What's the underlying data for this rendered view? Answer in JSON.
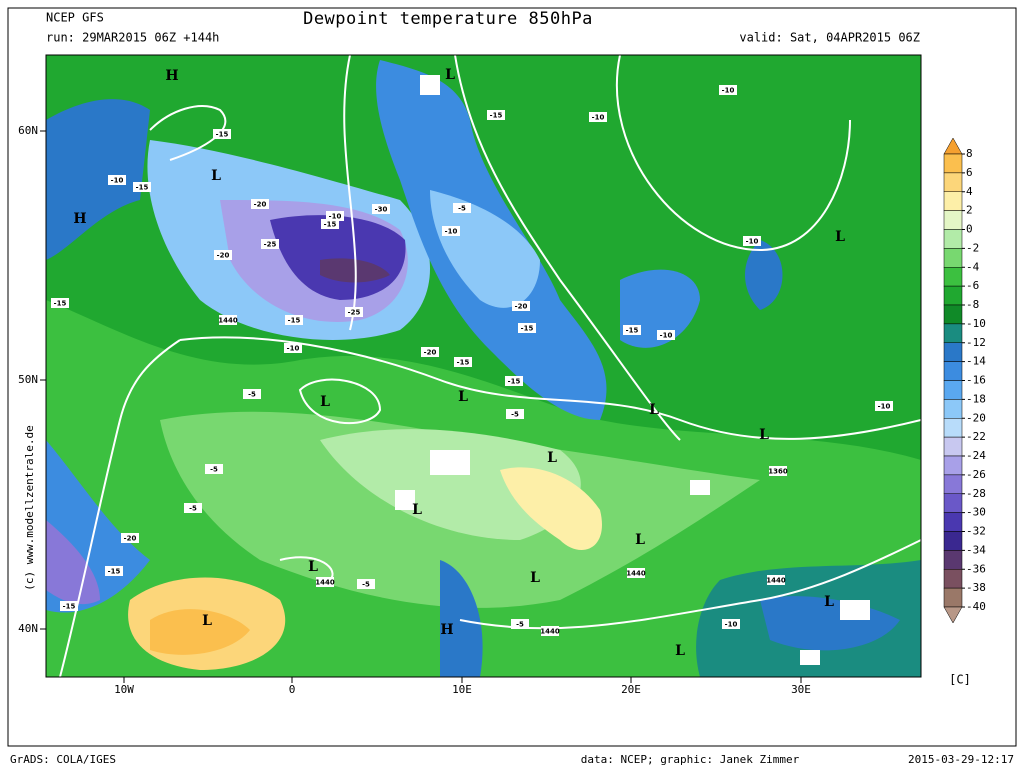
{
  "header": {
    "model": "NCEP GFS",
    "run": "run: 29MAR2015 06Z +144h",
    "title": "Dewpoint temperature 850hPa",
    "valid": "valid: Sat, 04APR2015 06Z"
  },
  "credit": "(c) www.modellzentrale.de",
  "map": {
    "lat_labels": [
      "60N",
      "50N",
      "40N"
    ],
    "lon_labels": [
      "10W",
      "0",
      "10E",
      "20E",
      "30E"
    ],
    "systems": [
      "H",
      "L",
      "H",
      "L",
      "L",
      "L",
      "L",
      "L",
      "L",
      "L",
      "L",
      "L",
      "L",
      "L",
      "L",
      "H",
      "L",
      "L"
    ],
    "contour_labels": [
      "-10",
      "-15",
      "-10",
      "-15",
      "-10",
      "-15",
      "-20",
      "-10",
      "-15",
      "-30",
      "-5",
      "-10",
      "-25",
      "-20",
      "-10",
      "-15",
      "1440",
      "-15",
      "-25",
      "-20",
      "-15",
      "-15",
      "-10",
      "-10",
      "-20",
      "-15",
      "-15",
      "-5",
      "-5",
      "-10",
      "-5",
      "1360",
      "-5",
      "-20",
      "1440",
      "-5",
      "1440",
      "1440",
      "-15",
      "-15",
      "1440",
      "-10",
      "-5"
    ]
  },
  "colorbar": {
    "levels": [
      8,
      6,
      4,
      2,
      0,
      -2,
      -4,
      -6,
      -8,
      -10,
      -12,
      -14,
      -16,
      -18,
      -20,
      -22,
      -24,
      -26,
      -28,
      -30,
      -32,
      -34,
      -36,
      -38,
      -40
    ],
    "colors": [
      "#f5a030",
      "#fbbf4e",
      "#fcd67a",
      "#fdefa8",
      "#e4f6c6",
      "#b2eba8",
      "#78d870",
      "#3cc040",
      "#20a830",
      "#108a28",
      "#1a8c80",
      "#2a78c8",
      "#3c8ce0",
      "#5aa8f0",
      "#8cc8f8",
      "#b8dcfa",
      "#c8c8f0",
      "#a8a0e8",
      "#8878d8",
      "#6a58c8",
      "#4a38b0",
      "#3a2890",
      "#5a3870",
      "#7a5060",
      "#9a7868",
      "#b89888"
    ],
    "unit": "[C]"
  },
  "footer": {
    "left": "GrADS: COLA/IGES",
    "center": "data: NCEP; graphic: Janek Zimmer",
    "right": "2015-03-29-12:17"
  }
}
